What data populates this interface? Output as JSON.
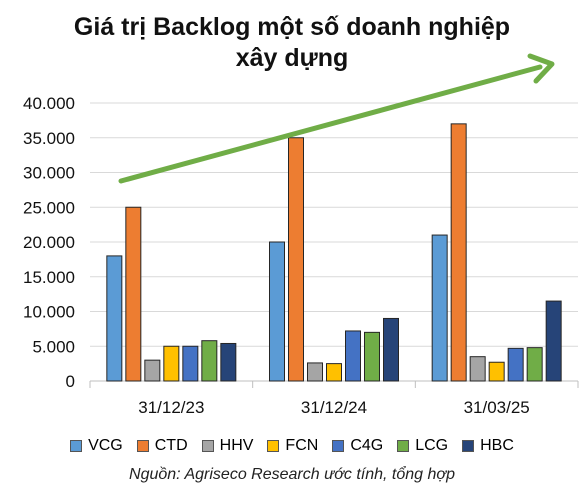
{
  "chart_data": {
    "type": "bar",
    "title_line1": "Giá trị Backlog một số doanh nghiệp",
    "title_line2": "xây dựng",
    "categories": [
      "31/12/23",
      "31/12/24",
      "31/03/25"
    ],
    "ylim": [
      0,
      40000
    ],
    "yticks": [
      "0",
      "5.000",
      "10.000",
      "15.000",
      "20.000",
      "25.000",
      "30.000",
      "35.000",
      "40.000"
    ],
    "grid": true,
    "legend_position": "bottom",
    "series": [
      {
        "name": "VCG",
        "color": "#5b9bd5",
        "values": [
          18000,
          20000,
          21000
        ]
      },
      {
        "name": "CTD",
        "color": "#ed7d31",
        "values": [
          25000,
          35000,
          37000
        ]
      },
      {
        "name": "HHV",
        "color": "#a5a5a5",
        "values": [
          3000,
          2600,
          3500
        ]
      },
      {
        "name": "FCN",
        "color": "#ffc000",
        "values": [
          5000,
          2500,
          2700
        ]
      },
      {
        "name": "C4G",
        "color": "#4472c4",
        "values": [
          5000,
          7200,
          4700
        ]
      },
      {
        "name": "LCG",
        "color": "#70ad47",
        "values": [
          5800,
          7000,
          4800
        ]
      },
      {
        "name": "HBC",
        "color": "#264478",
        "values": [
          5400,
          9000,
          11500
        ]
      }
    ],
    "trend_arrow_color": "#70ad47",
    "source": "Nguồn: Agriseco Research ước tính, tổng hợp"
  }
}
